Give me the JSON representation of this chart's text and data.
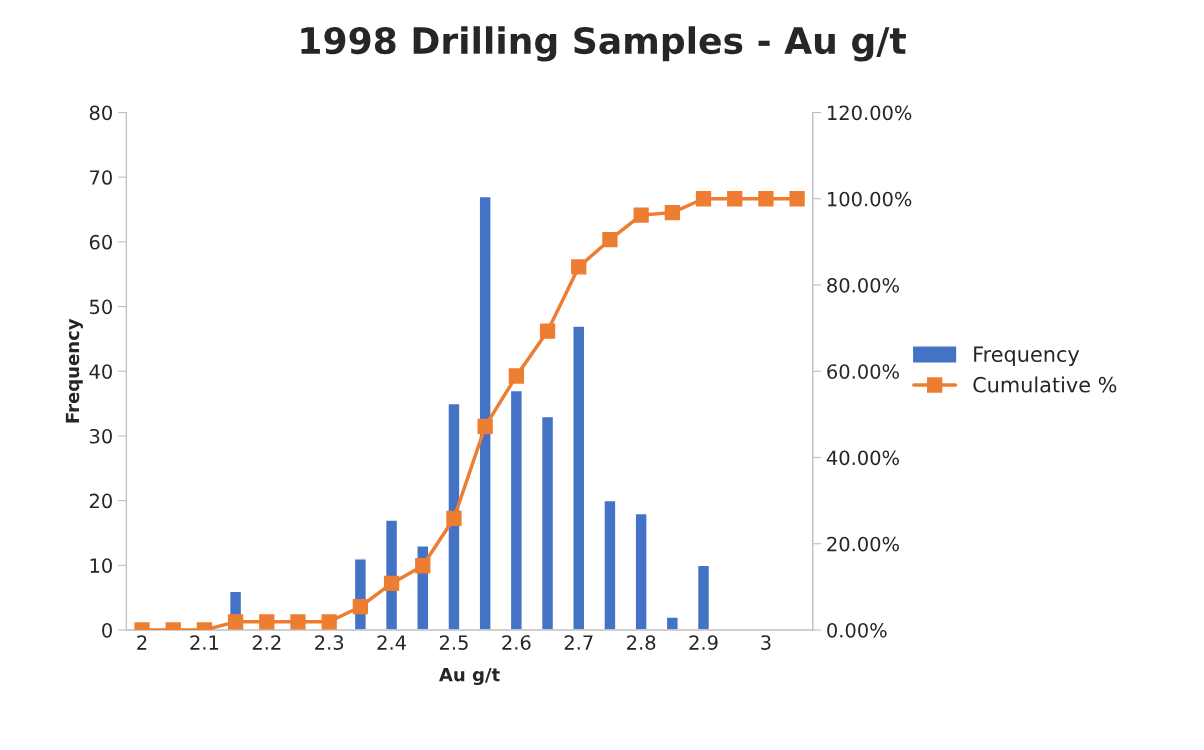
{
  "chart_data": {
    "type": "bar",
    "title": "1998 Drilling Samples - Au g/t",
    "xlabel": "Au g/t",
    "ylabel": "Frequency",
    "categories": [
      "2",
      null,
      "2.1",
      null,
      "2.2",
      null,
      "2.3",
      null,
      "2.4",
      null,
      "2.5",
      null,
      "2.6",
      null,
      "2.7",
      null,
      "2.8",
      null,
      "2.9",
      null,
      "3",
      null
    ],
    "series": [
      {
        "name": "Frequency",
        "color": "#4472c4",
        "values": [
          null,
          null,
          null,
          6,
          null,
          null,
          null,
          11,
          17,
          13,
          35,
          67,
          37,
          33,
          47,
          20,
          18,
          2,
          10,
          null,
          null,
          null
        ]
      },
      {
        "name": "Cumulative %",
        "type": "line",
        "axis": "y2",
        "color": "#ed7d31",
        "marker": "square",
        "values": [
          0,
          0,
          0,
          1.9,
          1.9,
          1.9,
          1.9,
          5.4,
          10.8,
          14.9,
          25.9,
          47.2,
          58.9,
          69.3,
          84.2,
          90.5,
          96.2,
          96.8,
          100,
          100,
          100,
          100
        ]
      }
    ],
    "ylim": [
      0,
      80
    ],
    "yticks": [
      0,
      10,
      20,
      30,
      40,
      50,
      60,
      70,
      80
    ],
    "y2lim": [
      0,
      120
    ],
    "y2ticks": [
      {
        "value": 0,
        "label": "0.00%"
      },
      {
        "value": 20,
        "label": "20.00%"
      },
      {
        "value": 40,
        "label": "40.00%"
      },
      {
        "value": 60,
        "label": "60.00%"
      },
      {
        "value": 80,
        "label": "80.00%"
      },
      {
        "value": 100,
        "label": "100.00%"
      },
      {
        "value": 120,
        "label": "120.00%"
      }
    ],
    "grid": false,
    "legend": "right"
  }
}
